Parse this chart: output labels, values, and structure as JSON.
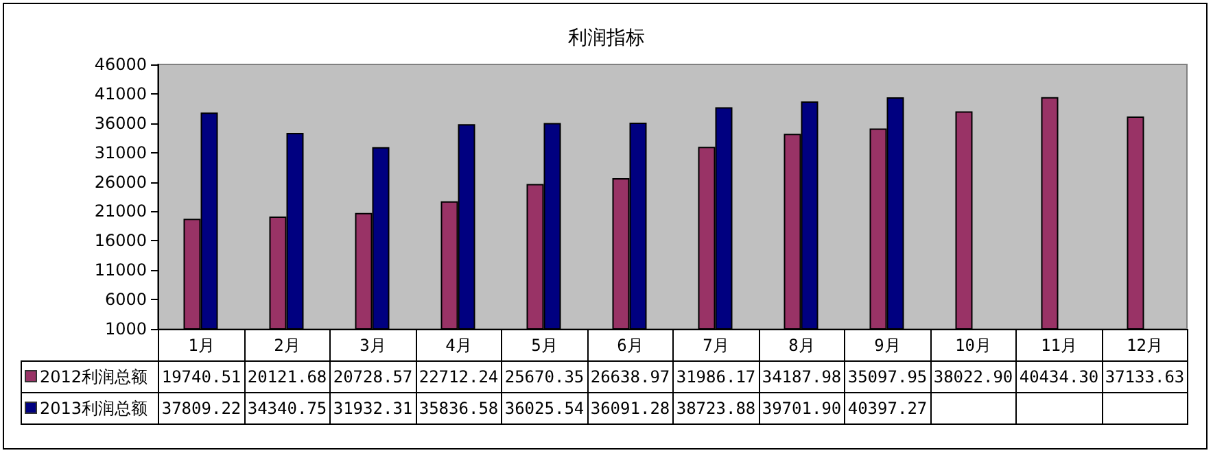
{
  "chart_data": {
    "type": "bar",
    "title": "利润指标",
    "categories": [
      "1月",
      "2月",
      "3月",
      "4月",
      "5月",
      "6月",
      "7月",
      "8月",
      "9月",
      "10月",
      "11月",
      "12月"
    ],
    "series": [
      {
        "name": "2012利润总额",
        "color": "#993366",
        "values": [
          19740.51,
          20121.68,
          20728.57,
          22712.24,
          25670.35,
          26638.97,
          31986.17,
          34187.98,
          35097.95,
          38022.9,
          40434.3,
          37133.63
        ],
        "value_labels": [
          "19740.51",
          "20121.68",
          "20728.57",
          "22712.24",
          "25670.35",
          "26638.97",
          "31986.17",
          "34187.98",
          "35097.95",
          "38022.90",
          "40434.30",
          "37133.63"
        ]
      },
      {
        "name": "2013利润总额",
        "color": "#000080",
        "values": [
          37809.22,
          34340.75,
          31932.31,
          35836.58,
          36025.54,
          36091.28,
          38723.88,
          39701.9,
          40397.27,
          null,
          null,
          null
        ],
        "value_labels": [
          "37809.22",
          "34340.75",
          "31932.31",
          "35836.58",
          "36025.54",
          "36091.28",
          "38723.88",
          "39701.90",
          "40397.27",
          null,
          null,
          null
        ]
      }
    ],
    "ylim": [
      1000,
      46000
    ],
    "yticks": [
      1000,
      6000,
      11000,
      16000,
      21000,
      26000,
      31000,
      36000,
      41000,
      46000
    ],
    "grid": false,
    "legend": "bottom"
  }
}
